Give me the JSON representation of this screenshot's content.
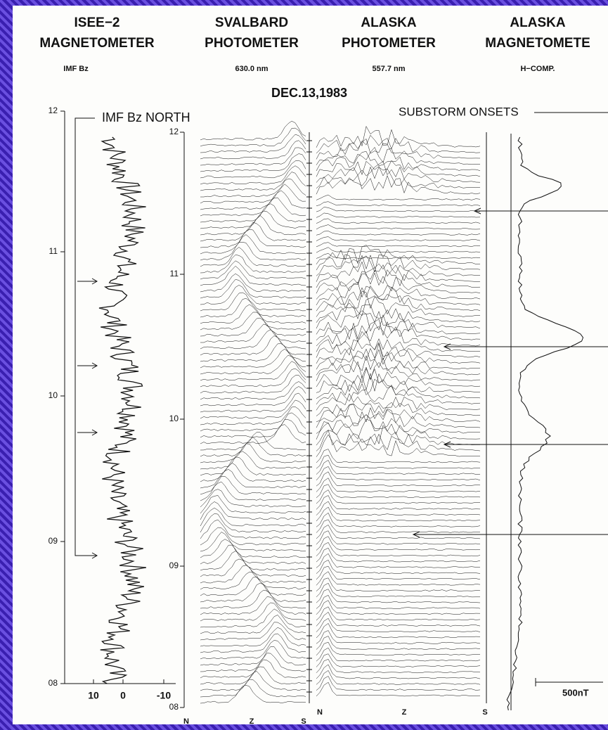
{
  "header": {
    "columns": [
      {
        "line1": "ISEE−2",
        "line2": "MAGNETOMETER",
        "line3": "IMF Bz"
      },
      {
        "line1": "SVALBARD",
        "line2": "PHOTOMETER",
        "line3": "630.0 nm"
      },
      {
        "line1": "ALASKA",
        "line2": "PHOTOMETER",
        "line3": "557.7 nm"
      },
      {
        "line1": "ALASKA",
        "line2": "MAGNETOMETE",
        "line3": "H−COMP."
      }
    ],
    "date": "DEC.13,1983"
  },
  "annotations": {
    "imf_north": "IMF Bz NORTH",
    "substorm": "SUBSTORM ONSETS",
    "scale": "500nT"
  },
  "left_axis": {
    "ticks": [
      "12",
      "11",
      "10",
      "09",
      "08"
    ],
    "x_ticks": [
      "10",
      "0",
      "-10"
    ]
  },
  "middle_axis": {
    "ticks": [
      "12",
      "11",
      "10",
      "09",
      "08"
    ]
  },
  "svalbard_x": [
    "N",
    "Z",
    "S"
  ],
  "alaska_x": [
    "N",
    "Z",
    "S"
  ]
}
